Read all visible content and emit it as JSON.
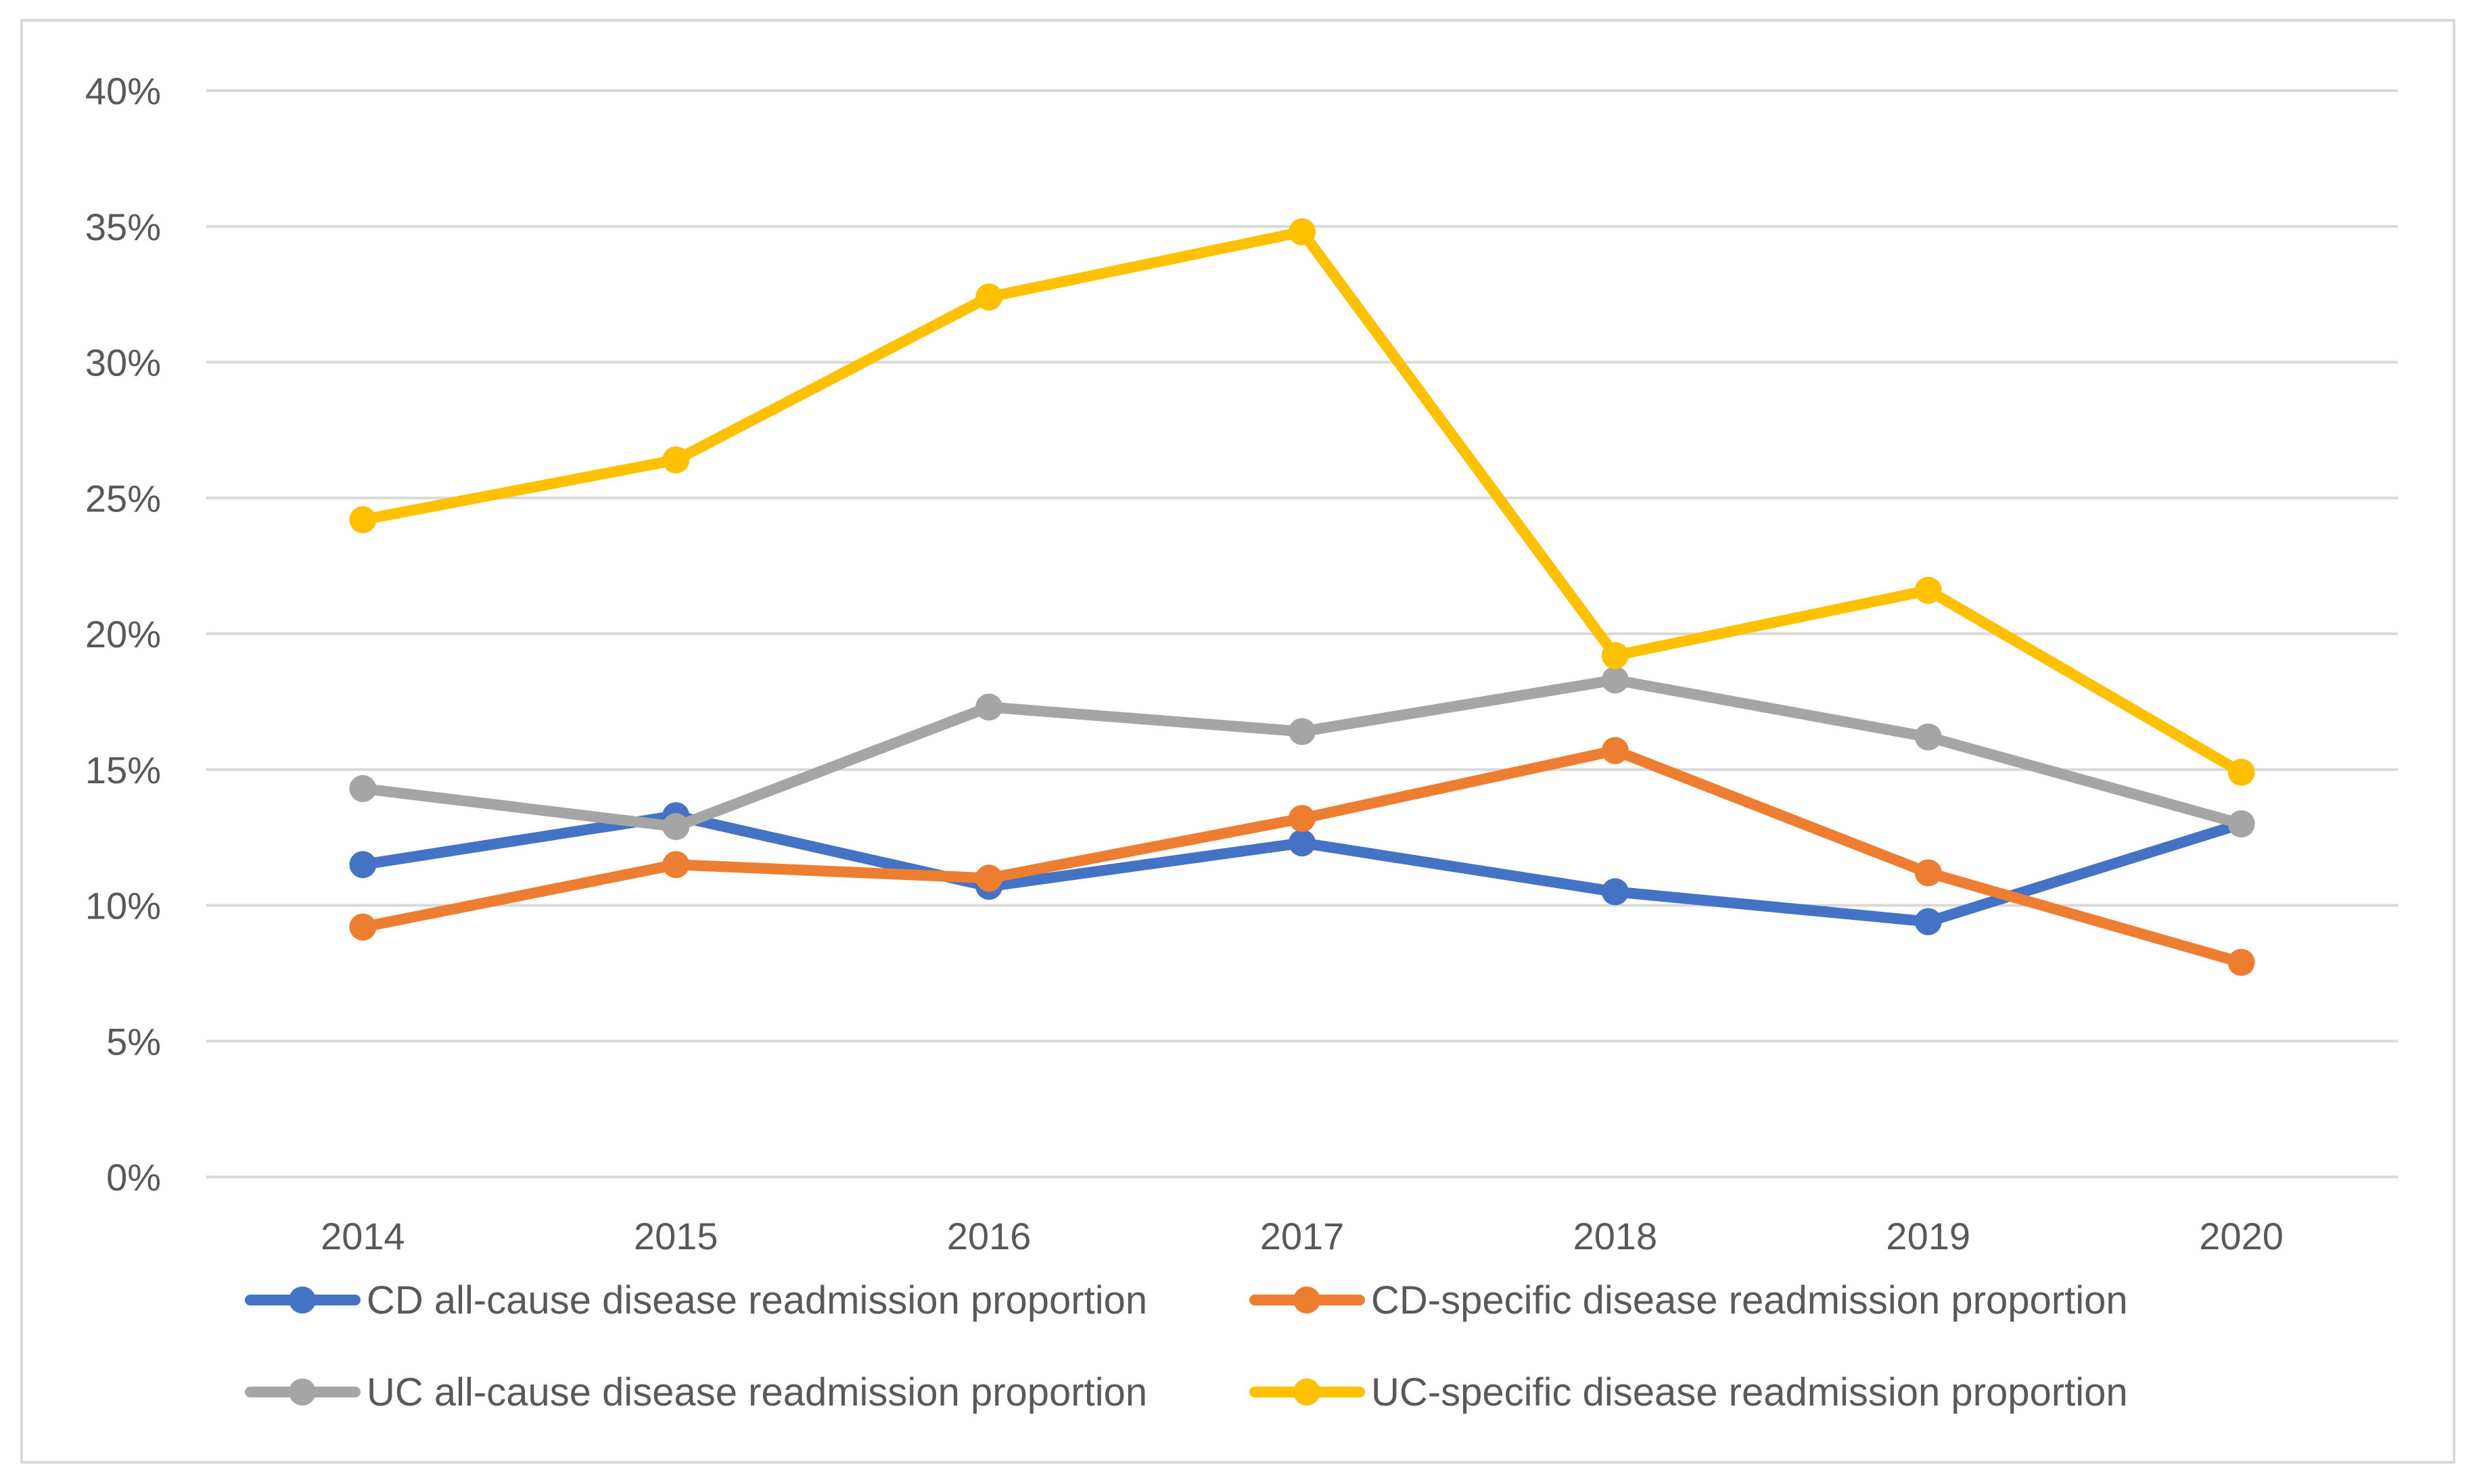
{
  "chart_data": {
    "type": "line",
    "title": "",
    "xlabel": "",
    "ylabel": "",
    "categories": [
      "2014",
      "2015",
      "2016",
      "2017",
      "2018",
      "2019",
      "2020"
    ],
    "y_ticks": [
      "0%",
      "5%",
      "10%",
      "15%",
      "20%",
      "25%",
      "30%",
      "35%",
      "40%"
    ],
    "ylim": [
      0,
      40
    ],
    "grid": "horizontal",
    "legend_position": "bottom",
    "series": [
      {
        "name": "CD all-cause disease readmission proportion",
        "color": "#4472c4",
        "values": [
          11.5,
          13.3,
          10.7,
          12.3,
          10.5,
          9.4,
          13.0
        ]
      },
      {
        "name": "CD-specific disease readmission proportion",
        "color": "#ed7d31",
        "values": [
          9.2,
          11.5,
          11.0,
          13.2,
          15.7,
          11.2,
          7.9
        ]
      },
      {
        "name": "UC all-cause disease readmission proportion",
        "color": "#a5a5a5",
        "values": [
          14.3,
          12.9,
          17.3,
          16.4,
          18.3,
          16.2,
          13.0
        ]
      },
      {
        "name": "UC-specific disease readmission proportion",
        "color": "#ffc000",
        "values": [
          24.2,
          26.4,
          32.4,
          34.8,
          19.2,
          21.6,
          14.9
        ]
      }
    ]
  }
}
